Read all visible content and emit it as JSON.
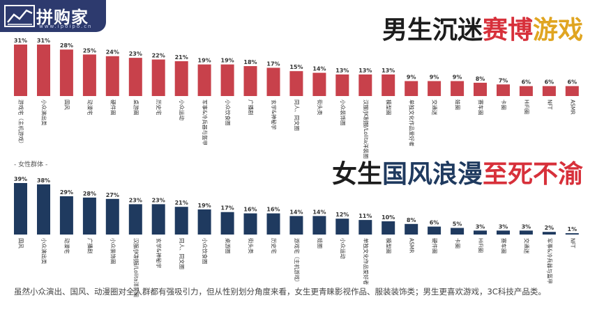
{
  "logo": {
    "name": "拼购家",
    "url": "www.ipoipo.cn"
  },
  "headline_male": {
    "part1": "男生沉迷",
    "part2": "赛博",
    "part3": "游戏"
  },
  "headline_female": {
    "part1": "女生",
    "part2": "国风浪漫",
    "part3": "至死不渝"
  },
  "female_panel_label": "- 女性群体 -",
  "footnote": "虽然小众演出、国风、动漫圈对全人群都有强吸引力，但从性别划分角度来看，女生更青睐影视作品、服装装饰类；男生更喜欢游戏，3C科技产品类。",
  "colors": {
    "male_bar": "#c8414b",
    "female_bar": "#1f3a5f"
  },
  "chart_data": [
    {
      "type": "bar",
      "title": "",
      "categories": [
        "游戏宅（主机游戏）",
        "小众演出类",
        "国风",
        "动漫宅",
        "硬件圈",
        "桌游圈",
        "历史宅",
        "小众运动",
        "军事&冷兵器与盔甲",
        "小众饮食圈",
        "广播剧",
        "玄学&神秘学",
        "同人、同文圈",
        "街头类",
        "小众装饰圈",
        "汉服/JK制服/Lolita洋装圈",
        "模型圈",
        "单独文化作品爱好者",
        "交通迷",
        "娃圈",
        "赛车圈",
        "卡圈",
        "HiFi圈",
        "NFT",
        "ASMR"
      ],
      "values": [
        31,
        31,
        28,
        25,
        24,
        23,
        22,
        21,
        19,
        19,
        18,
        17,
        15,
        14,
        13,
        13,
        13,
        9,
        9,
        9,
        8,
        7,
        6,
        6,
        6
      ],
      "value_labels": [
        "31%",
        "31%",
        "28%",
        "25%",
        "24%",
        "23%",
        "22%",
        "21%",
        "19%",
        "19%",
        "18%",
        "17%",
        "15%",
        "14%",
        "13%",
        "13%",
        "13%",
        "9%",
        "9%",
        "9%",
        "8%",
        "7%",
        "6%",
        "6%",
        "6%"
      ],
      "ylim": [
        0,
        31
      ]
    },
    {
      "type": "bar",
      "title": "",
      "categories": [
        "国风",
        "小众演出类",
        "动漫宅",
        "广播剧",
        "小众装饰圈",
        "汉服/JK制服/Lolita洋装圈",
        "玄学&神秘学",
        "同人、同文圈",
        "小众饮食圈",
        "桌游圈",
        "街头类",
        "历史宅",
        "游戏宅（主机游戏）",
        "娃圈",
        "小众运动",
        "单独文化作品爱好者",
        "模型圈",
        "ASMR",
        "硬件圈",
        "卡圈",
        "HiFi圈",
        "赛车圈",
        "交通迷",
        "军事&冷兵器与盔甲",
        "NFT"
      ],
      "values": [
        39,
        38,
        29,
        28,
        27,
        23,
        23,
        21,
        19,
        17,
        16,
        16,
        14,
        14,
        12,
        11,
        10,
        8,
        6,
        5,
        3,
        3,
        3,
        2,
        1
      ],
      "value_labels": [
        "39%",
        "38%",
        "29%",
        "28%",
        "27%",
        "23%",
        "23%",
        "21%",
        "19%",
        "17%",
        "16%",
        "16%",
        "14%",
        "14%",
        "12%",
        "11%",
        "10%",
        "8%",
        "6%",
        "5%",
        "3%",
        "3%",
        "3%",
        "2%",
        "1%"
      ],
      "ylim": [
        0,
        39
      ]
    }
  ]
}
